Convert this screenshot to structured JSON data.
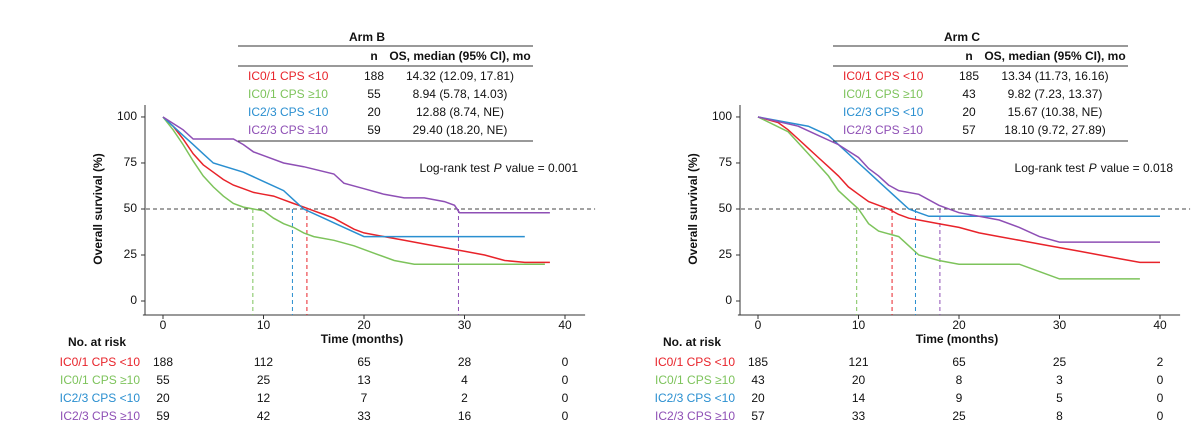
{
  "chart_data": [
    {
      "type": "line",
      "step": true,
      "title": "Arm B",
      "xlabel": "Time (months)",
      "ylabel": "Overall survival (%)",
      "xlim": [
        -2,
        42
      ],
      "ylim": [
        -7.6,
        106.5
      ],
      "xticks": [
        0,
        10,
        20,
        30,
        40
      ],
      "yticks": [
        0,
        25,
        50,
        75,
        100
      ],
      "reference_line": 50,
      "table_header": {
        "n": "n",
        "os": "OS, median (95% CI), mo"
      },
      "annotation": {
        "before": "Log-rank test",
        "italic": "P",
        "after": "value = 0.001"
      },
      "risk_title": "No. at risk",
      "series": [
        {
          "name": "IC0/1 CPS <10",
          "color": "#e8232a",
          "n": 188,
          "os": "14.32 (12.09, 17.81)",
          "median": 14.32,
          "x": [
            0,
            1,
            2,
            3,
            4,
            5,
            6,
            7,
            8,
            9,
            10,
            11,
            12,
            13,
            14,
            15,
            16,
            17,
            18,
            19,
            20,
            22,
            24,
            26,
            28,
            30,
            32,
            34,
            36,
            38.5
          ],
          "values": [
            100,
            95,
            88,
            80,
            74,
            70,
            66,
            63,
            61,
            59,
            58,
            57,
            55,
            53,
            51,
            49,
            47,
            45,
            42,
            39,
            37,
            35,
            33,
            31,
            29,
            27,
            25,
            22,
            21,
            21
          ],
          "at_risk": [
            188,
            112,
            65,
            28,
            0
          ]
        },
        {
          "name": "IC0/1 CPS ≥10",
          "color": "#7dc35b",
          "n": 55,
          "os": "8.94 (5.78, 14.03)",
          "median": 8.94,
          "x": [
            0,
            1,
            2,
            3,
            4,
            5,
            6,
            7,
            8,
            9,
            10,
            11,
            12,
            13,
            14,
            15,
            17,
            19,
            21,
            23,
            25,
            30,
            35,
            38
          ],
          "values": [
            100,
            93,
            85,
            76,
            68,
            62,
            57,
            53,
            51,
            50,
            49,
            45,
            42,
            40,
            37,
            35,
            33,
            30,
            26,
            22,
            20,
            20,
            20,
            20
          ],
          "at_risk": [
            55,
            25,
            13,
            4,
            0
          ]
        },
        {
          "name": "IC2/3 CPS <10",
          "color": "#2a8fd0",
          "n": 20,
          "os": "12.88 (8.74, NE)",
          "median": 12.88,
          "x": [
            0,
            1,
            2,
            3,
            4,
            5,
            8,
            10,
            12,
            13,
            14,
            16,
            18,
            20,
            24,
            36
          ],
          "values": [
            100,
            95,
            90,
            85,
            80,
            75,
            70,
            65,
            60,
            55,
            50,
            45,
            40,
            35,
            35,
            35
          ],
          "at_risk": [
            20,
            12,
            7,
            2,
            0
          ]
        },
        {
          "name": "IC2/3 CPS ≥10",
          "color": "#8e4fb5",
          "n": 59,
          "os": "29.40 (18.20, NE)",
          "median": 29.4,
          "x": [
            0,
            2,
            3,
            7,
            8,
            9,
            10,
            12,
            14,
            17,
            18,
            20,
            22,
            24,
            26,
            28,
            29,
            29.5,
            38.5
          ],
          "values": [
            100,
            93,
            88,
            88,
            85,
            81,
            79,
            75,
            73,
            69,
            64,
            61,
            58,
            56,
            56,
            54,
            52,
            48,
            48
          ],
          "at_risk": [
            59,
            42,
            33,
            16,
            0
          ]
        }
      ]
    },
    {
      "type": "line",
      "step": true,
      "title": "Arm C",
      "xlabel": "Time (months)",
      "ylabel": "Overall survival (%)",
      "xlim": [
        -2,
        42
      ],
      "ylim": [
        -7.6,
        106.5
      ],
      "xticks": [
        0,
        10,
        20,
        30,
        40
      ],
      "yticks": [
        0,
        25,
        50,
        75,
        100
      ],
      "reference_line": 50,
      "table_header": {
        "n": "n",
        "os": "OS, median (95% CI), mo"
      },
      "annotation": {
        "before": "Log-rank test",
        "italic": "P",
        "after": "value = 0.018"
      },
      "risk_title": "No. at risk",
      "series": [
        {
          "name": "IC0/1 CPS <10",
          "color": "#e8232a",
          "n": 185,
          "os": "13.34 (11.73, 16.16)",
          "median": 13.34,
          "x": [
            0,
            2,
            3,
            4,
            5,
            6,
            7,
            8,
            9,
            10,
            11,
            12,
            13,
            14,
            15,
            16,
            18,
            20,
            22,
            24,
            26,
            28,
            30,
            32,
            34,
            36,
            38,
            40
          ],
          "values": [
            100,
            97,
            93,
            88,
            83,
            78,
            73,
            68,
            62,
            58,
            54,
            52,
            50,
            47,
            45,
            44,
            42,
            40,
            37,
            35,
            33,
            31,
            29,
            27,
            25,
            23,
            21,
            21
          ],
          "at_risk": [
            185,
            121,
            65,
            25,
            2
          ]
        },
        {
          "name": "IC0/1 CPS ≥10",
          "color": "#7dc35b",
          "n": 43,
          "os": "9.82 (7.23, 13.37)",
          "median": 9.82,
          "x": [
            0,
            3,
            5,
            7,
            8,
            9,
            10,
            11,
            12,
            14,
            15,
            16,
            18,
            20,
            26,
            28,
            30,
            34,
            38
          ],
          "values": [
            100,
            92,
            80,
            68,
            60,
            55,
            50,
            42,
            38,
            35,
            30,
            25,
            22,
            20,
            20,
            16,
            12,
            12,
            12
          ],
          "at_risk": [
            43,
            20,
            8,
            3,
            0
          ]
        },
        {
          "name": "IC2/3 CPS <10",
          "color": "#2a8fd0",
          "n": 20,
          "os": "15.67 (10.38, NE)",
          "median": 15.67,
          "x": [
            0,
            5,
            7,
            8,
            10,
            11,
            12,
            13,
            14,
            15,
            16,
            17,
            36,
            40
          ],
          "values": [
            100,
            95,
            90,
            85,
            75,
            70,
            65,
            60,
            55,
            50,
            48,
            46,
            46,
            46
          ],
          "at_risk": [
            20,
            14,
            9,
            5,
            0
          ]
        },
        {
          "name": "IC2/3 CPS ≥10",
          "color": "#8e4fb5",
          "n": 57,
          "os": "18.10 (9.72, 27.89)",
          "median": 18.1,
          "x": [
            0,
            4,
            6,
            8,
            10,
            11,
            12,
            13,
            14,
            16,
            18,
            20,
            22,
            24,
            26,
            28,
            30,
            40
          ],
          "values": [
            100,
            95,
            90,
            85,
            78,
            72,
            68,
            63,
            60,
            58,
            52,
            48,
            46,
            44,
            40,
            35,
            32,
            32
          ],
          "at_risk": [
            57,
            33,
            25,
            8,
            0
          ]
        }
      ]
    }
  ]
}
